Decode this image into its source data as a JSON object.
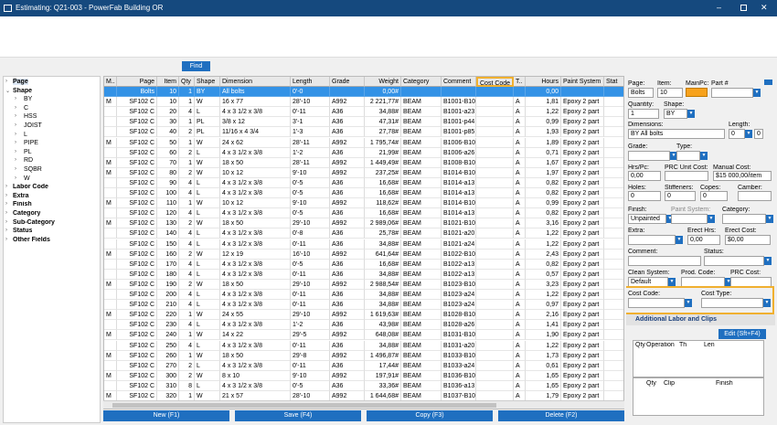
{
  "window": {
    "title": "Estimating: Q21-003 - PowerFab Building OR"
  },
  "toolbar": {
    "find": "Find"
  },
  "tree": [
    {
      "label": "Page"
    },
    {
      "label": "Shape",
      "children": [
        "BY",
        "C",
        "HSS",
        "JOIST",
        "L",
        "PIPE",
        "PL",
        "RD",
        "SQBR",
        "W"
      ]
    },
    {
      "label": "Labor Code"
    },
    {
      "label": "Extra"
    },
    {
      "label": "Finish"
    },
    {
      "label": "Category"
    },
    {
      "label": "Sub-Category"
    },
    {
      "label": "Status"
    },
    {
      "label": "Other Fields"
    }
  ],
  "table": {
    "columns": [
      "M..",
      "Page",
      "Item",
      "Qty",
      "Shape",
      "Dimension",
      "Length",
      "Grade",
      "Weight",
      "Category",
      "Comment",
      "Cost Code",
      "T..",
      "Hours",
      "Paint System",
      "Stat"
    ],
    "rows": [
      [
        null,
        "Bolts",
        "10",
        "1",
        "BY",
        "All bolts",
        "0'-0",
        null,
        "0,00#",
        null,
        null,
        null,
        null,
        "0,00",
        null,
        null
      ],
      [
        "M",
        "SF102 C",
        "10",
        "1",
        "W",
        "16 x 77",
        "28'-10",
        "A992",
        "2 221,77#",
        "BEAM",
        "B1001-B100",
        null,
        "A",
        "1,81",
        "Epoxy 2 part",
        null
      ],
      [
        null,
        "SF102 C",
        "20",
        "4",
        "L",
        "4 x 3 1/2 x 3/8",
        "0'-11",
        "A36",
        "34,88#",
        "BEAM",
        "B1001-a23",
        null,
        "A",
        "1,22",
        "Epoxy 2 part",
        null
      ],
      [
        null,
        "SF102 C",
        "30",
        "1",
        "PL",
        "3/8 x 12",
        "3'-1",
        "A36",
        "47,31#",
        "BEAM",
        "B1001-p44",
        null,
        "A",
        "0,99",
        "Epoxy 2 part",
        null
      ],
      [
        null,
        "SF102 C",
        "40",
        "2",
        "PL",
        "11/16 x 4 3/4",
        "1'-3",
        "A36",
        "27,78#",
        "BEAM",
        "B1001-p85",
        null,
        "A",
        "1,93",
        "Epoxy 2 part",
        null
      ],
      [
        "M",
        "SF102 C",
        "50",
        "1",
        "W",
        "24 x 62",
        "28'-11",
        "A992",
        "1 795,74#",
        "BEAM",
        "B1006-B100",
        null,
        "A",
        "1,89",
        "Epoxy 2 part",
        null
      ],
      [
        null,
        "SF102 C",
        "60",
        "2",
        "L",
        "4 x 3 1/2 x 3/8",
        "1'-2",
        "A36",
        "21,99#",
        "BEAM",
        "B1006-a26",
        null,
        "A",
        "0,71",
        "Epoxy 2 part",
        null
      ],
      [
        "M",
        "SF102 C",
        "70",
        "1",
        "W",
        "18 x 50",
        "28'-11",
        "A992",
        "1 449,49#",
        "BEAM",
        "B1008-B100",
        null,
        "A",
        "1,67",
        "Epoxy 2 part",
        null
      ],
      [
        "M",
        "SF102 C",
        "80",
        "2",
        "W",
        "10 x 12",
        "9'-10",
        "A992",
        "237,25#",
        "BEAM",
        "B1014-B101",
        null,
        "A",
        "1,97",
        "Epoxy 2 part",
        null
      ],
      [
        null,
        "SF102 C",
        "90",
        "4",
        "L",
        "4 x 3 1/2 x 3/8",
        "0'-5",
        "A36",
        "16,68#",
        "BEAM",
        "B1014-a13",
        null,
        "A",
        "0,82",
        "Epoxy 2 part",
        null
      ],
      [
        null,
        "SF102 C",
        "100",
        "4",
        "L",
        "4 x 3 1/2 x 3/8",
        "0'-5",
        "A36",
        "16,68#",
        "BEAM",
        "B1014-a13",
        null,
        "A",
        "0,82",
        "Epoxy 2 part",
        null
      ],
      [
        "M",
        "SF102 C",
        "110",
        "1",
        "W",
        "10 x 12",
        "9'-10",
        "A992",
        "118,62#",
        "BEAM",
        "B1014-B101",
        null,
        "A",
        "0,99",
        "Epoxy 2 part",
        null
      ],
      [
        null,
        "SF102 C",
        "120",
        "4",
        "L",
        "4 x 3 1/2 x 3/8",
        "0'-5",
        "A36",
        "16,68#",
        "BEAM",
        "B1014-a13",
        null,
        "A",
        "0,82",
        "Epoxy 2 part",
        null
      ],
      [
        "M",
        "SF102 C",
        "130",
        "2",
        "W",
        "18 x 50",
        "29'-10",
        "A992",
        "2 989,06#",
        "BEAM",
        "B1021-B102",
        null,
        "A",
        "3,16",
        "Epoxy 2 part",
        null
      ],
      [
        null,
        "SF102 C",
        "140",
        "4",
        "L",
        "4 x 3 1/2 x 3/8",
        "0'-8",
        "A36",
        "25,78#",
        "BEAM",
        "B1021-a20",
        null,
        "A",
        "1,22",
        "Epoxy 2 part",
        null
      ],
      [
        null,
        "SF102 C",
        "150",
        "4",
        "L",
        "4 x 3 1/2 x 3/8",
        "0'-11",
        "A36",
        "34,88#",
        "BEAM",
        "B1021-a24",
        null,
        "A",
        "1,22",
        "Epoxy 2 part",
        null
      ],
      [
        "M",
        "SF102 C",
        "160",
        "2",
        "W",
        "12 x 19",
        "16'-10",
        "A992",
        "641,64#",
        "BEAM",
        "B1022-B102",
        null,
        "A",
        "2,43",
        "Epoxy 2 part",
        null
      ],
      [
        null,
        "SF102 C",
        "170",
        "4",
        "L",
        "4 x 3 1/2 x 3/8",
        "0'-5",
        "A36",
        "16,68#",
        "BEAM",
        "B1022-a13",
        null,
        "A",
        "0,82",
        "Epoxy 2 part",
        null
      ],
      [
        null,
        "SF102 C",
        "180",
        "4",
        "L",
        "4 x 3 1/2 x 3/8",
        "0'-11",
        "A36",
        "34,88#",
        "BEAM",
        "B1022-a13",
        null,
        "A",
        "0,57",
        "Epoxy 2 part",
        null
      ],
      [
        "M",
        "SF102 C",
        "190",
        "2",
        "W",
        "18 x 50",
        "29'-10",
        "A992",
        "2 988,54#",
        "BEAM",
        "B1023-B102",
        null,
        "A",
        "3,23",
        "Epoxy 2 part",
        null
      ],
      [
        null,
        "SF102 C",
        "200",
        "4",
        "L",
        "4 x 3 1/2 x 3/8",
        "0'-11",
        "A36",
        "34,88#",
        "BEAM",
        "B1023-a24",
        null,
        "A",
        "1,22",
        "Epoxy 2 part",
        null
      ],
      [
        null,
        "SF102 C",
        "210",
        "4",
        "L",
        "4 x 3 1/2 x 3/8",
        "0'-11",
        "A36",
        "34,88#",
        "BEAM",
        "B1023-a24",
        null,
        "A",
        "0,97",
        "Epoxy 2 part",
        null
      ],
      [
        "M",
        "SF102 C",
        "220",
        "1",
        "W",
        "24 x 55",
        "29'-10",
        "A992",
        "1 619,63#",
        "BEAM",
        "B1028-B102",
        null,
        "A",
        "2,16",
        "Epoxy 2 part",
        null
      ],
      [
        null,
        "SF102 C",
        "230",
        "4",
        "L",
        "4 x 3 1/2 x 3/8",
        "1'-2",
        "A36",
        "43,98#",
        "BEAM",
        "B1028-a26",
        null,
        "A",
        "1,41",
        "Epoxy 2 part",
        null
      ],
      [
        "M",
        "SF102 C",
        "240",
        "1",
        "W",
        "14 x 22",
        "29'-5",
        "A992",
        "648,08#",
        "BEAM",
        "B1031-B103",
        null,
        "A",
        "1,90",
        "Epoxy 2 part",
        null
      ],
      [
        null,
        "SF102 C",
        "250",
        "4",
        "L",
        "4 x 3 1/2 x 3/8",
        "0'-11",
        "A36",
        "34,88#",
        "BEAM",
        "B1031-a20",
        null,
        "A",
        "1,22",
        "Epoxy 2 part",
        null
      ],
      [
        "M",
        "SF102 C",
        "260",
        "1",
        "W",
        "18 x 50",
        "29'-8",
        "A992",
        "1 496,87#",
        "BEAM",
        "B1033-B103",
        null,
        "A",
        "1,73",
        "Epoxy 2 part",
        null
      ],
      [
        null,
        "SF102 C",
        "270",
        "2",
        "L",
        "4 x 3 1/2 x 3/8",
        "0'-11",
        "A36",
        "17,44#",
        "BEAM",
        "B1033-a24",
        null,
        "A",
        "0,61",
        "Epoxy 2 part",
        null
      ],
      [
        "M",
        "SF102 C",
        "300",
        "2",
        "W",
        "8 x 10",
        "9'-10",
        "A992",
        "197,91#",
        "BEAM",
        "B1036-B103",
        null,
        "A",
        "1,65",
        "Epoxy 2 part",
        null
      ],
      [
        null,
        "SF102 C",
        "310",
        "8",
        "L",
        "4 x 3 1/2 x 3/8",
        "0'-5",
        "A36",
        "33,36#",
        "BEAM",
        "B1036-a13",
        null,
        "A",
        "1,65",
        "Epoxy 2 part",
        null
      ],
      [
        "M",
        "SF102 C",
        "320",
        "1",
        "W",
        "21 x 57",
        "28'-10",
        "A992",
        "1 644,68#",
        "BEAM",
        "B1037-B103",
        null,
        "A",
        "1,79",
        "Epoxy 2 part",
        null
      ]
    ]
  },
  "buttons": [
    "New (F1)",
    "Save (F4)",
    "Copy (F3)",
    "Delete (F2)"
  ],
  "form": {
    "page": {
      "label": "Page:",
      "value": "Bolts"
    },
    "item": {
      "label": "Item:",
      "value": "10"
    },
    "main_pc": {
      "label": "MainPc:"
    },
    "part": {
      "label": "Part #"
    },
    "quantity": {
      "label": "Quantity:",
      "value": "1"
    },
    "shape": {
      "label": "Shape:",
      "value": "BY"
    },
    "dimensions": {
      "label": "Dimensions:",
      "value": "BY All bolts"
    },
    "length": {
      "label": "Length:",
      "value": "0"
    },
    "length_in": {
      "value": "0"
    },
    "grade": {
      "label": "Grade:"
    },
    "type": {
      "label": "Type:"
    },
    "hrs_pc": {
      "label": "Hrs/Pc:",
      "value": "0,00"
    },
    "prc_unit_cost": {
      "label": "PRC Unit Cost:"
    },
    "manual_cost": {
      "label": "Manual Cost:",
      "value": "$15 000,00/item"
    },
    "holes": {
      "label": "Holes:",
      "value": "0"
    },
    "stiffeners": {
      "label": "Stiffeners:",
      "value": "0"
    },
    "copes": {
      "label": "Copes:",
      "value": "0"
    },
    "camber": {
      "label": "Camber:"
    },
    "finish": {
      "label": "Finish:",
      "value": "Unpainted"
    },
    "paint_system": {
      "label": "Paint System:"
    },
    "category": {
      "label": "Category:"
    },
    "extra": {
      "label": "Extra:"
    },
    "erect_hrs": {
      "label": "Erect Hrs:",
      "value": "0,00"
    },
    "erect_cost": {
      "label": "Erect Cost:",
      "value": "$0,00"
    },
    "comment": {
      "label": "Comment:"
    },
    "status": {
      "label": "Status:"
    },
    "clean_system": {
      "label": "Clean System:",
      "value": "Default"
    },
    "prod_code": {
      "label": "Prod. Code:"
    },
    "prc_cost": {
      "label": "PRC Cost:"
    },
    "cost_code": {
      "label": "Cost Code:"
    },
    "cost_type": {
      "label": "Cost Type:"
    }
  },
  "labor": {
    "title": "Additional Labor and Clips",
    "edit": "Edit (Sft+F4)",
    "labor_columns": [
      "Qty",
      "Operation",
      "Th",
      "Len"
    ],
    "clip_columns": [
      "Qty",
      "Clip",
      "Finish"
    ]
  }
}
